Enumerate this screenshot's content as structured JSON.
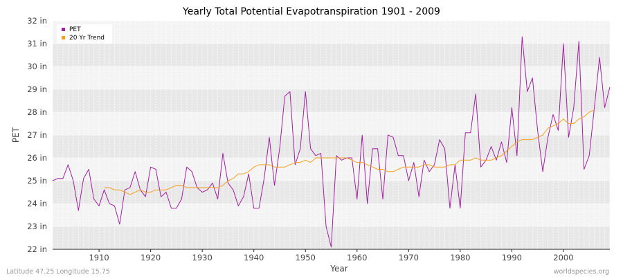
{
  "chart_data": {
    "type": "line",
    "title": "Yearly Total Potential Evapotranspiration 1901 - 2009",
    "xlabel": "Year",
    "ylabel": "PET",
    "xlim": [
      1901,
      2009
    ],
    "ylim": [
      22,
      32
    ],
    "x_ticks": [
      1910,
      1920,
      1930,
      1940,
      1950,
      1960,
      1970,
      1980,
      1990,
      2000
    ],
    "y_ticks": [
      "22 in",
      "23 in",
      "24 in",
      "25 in",
      "26 in",
      "27 in",
      "28 in",
      "29 in",
      "30 in",
      "31 in",
      "32 in"
    ],
    "grid": true,
    "legend_position": "top-left",
    "series": [
      {
        "name": "PET",
        "color": "#a020a0",
        "x_start": 1901,
        "values": [
          25.0,
          25.1,
          25.1,
          25.7,
          25.0,
          23.7,
          25.1,
          25.5,
          24.2,
          23.9,
          24.6,
          24.0,
          23.9,
          23.1,
          24.6,
          24.7,
          25.4,
          24.6,
          24.3,
          25.6,
          25.5,
          24.3,
          24.5,
          23.8,
          23.8,
          24.2,
          25.6,
          25.4,
          24.7,
          24.5,
          24.6,
          24.9,
          24.2,
          26.2,
          24.9,
          24.6,
          23.9,
          24.3,
          25.3,
          23.8,
          23.8,
          25.1,
          26.9,
          24.8,
          26.4,
          28.7,
          28.9,
          25.7,
          26.4,
          28.9,
          26.4,
          26.1,
          26.2,
          23.0,
          22.1,
          26.1,
          25.9,
          26.0,
          26.0,
          24.2,
          27.0,
          24.0,
          26.4,
          26.4,
          24.2,
          27.0,
          26.9,
          26.1,
          26.1,
          25.0,
          25.8,
          24.3,
          25.9,
          25.4,
          25.7,
          26.8,
          26.4,
          23.8,
          25.7,
          23.8,
          27.1,
          27.1,
          28.8,
          25.6,
          25.9,
          26.5,
          25.9,
          26.7,
          25.8,
          28.2,
          26.1,
          31.3,
          28.9,
          29.5,
          27.2,
          25.4,
          26.9,
          27.9,
          27.2,
          31.0,
          26.9,
          28.2,
          31.1,
          25.5,
          26.1,
          28.2,
          30.4,
          28.2,
          29.1
        ]
      },
      {
        "name": "20 Yr Trend",
        "color": "#f5a020",
        "x_start": 1911,
        "values": [
          24.7,
          24.7,
          24.6,
          24.6,
          24.5,
          24.4,
          24.5,
          24.6,
          24.5,
          24.5,
          24.6,
          24.6,
          24.6,
          24.7,
          24.8,
          24.8,
          24.7,
          24.7,
          24.7,
          24.7,
          24.7,
          24.7,
          24.7,
          24.8,
          25.0,
          25.1,
          25.3,
          25.3,
          25.4,
          25.6,
          25.7,
          25.7,
          25.7,
          25.6,
          25.6,
          25.6,
          25.7,
          25.8,
          25.8,
          25.9,
          25.8,
          26.0,
          26.0,
          26.0,
          26.0,
          26.0,
          26.0,
          26.0,
          25.9,
          25.8,
          25.8,
          25.7,
          25.6,
          25.5,
          25.5,
          25.4,
          25.4,
          25.5,
          25.6,
          25.6,
          25.6,
          25.6,
          25.7,
          25.7,
          25.6,
          25.6,
          25.6,
          25.7,
          25.7,
          25.9,
          25.9,
          25.9,
          26.0,
          25.9,
          25.9,
          25.9,
          26.0,
          26.1,
          26.3,
          26.5,
          26.7,
          26.8,
          26.8,
          26.8,
          26.9,
          27.0,
          27.3,
          27.4,
          27.5,
          27.7,
          27.5,
          27.5,
          27.7,
          27.8,
          28.0,
          28.1
        ]
      }
    ]
  },
  "footer": {
    "left": "Latitude 47.25 Longitude 15.75",
    "right": "worldspecies.org"
  }
}
